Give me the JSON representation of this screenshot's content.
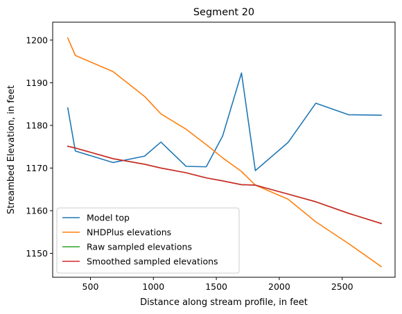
{
  "chart_data": {
    "type": "line",
    "title": "Segment 20",
    "xlabel": "Distance along stream profile, in feet",
    "ylabel": "Streambed Elevation, in feet",
    "xlim": [
      200,
      2920
    ],
    "ylim": [
      1144.4,
      1204.2
    ],
    "xticks": [
      500,
      1000,
      1500,
      2000,
      2500
    ],
    "yticks": [
      1150,
      1160,
      1170,
      1180,
      1190,
      1200
    ],
    "grid": false,
    "legend_position": "lower-left",
    "series": [
      {
        "name": "Model top",
        "color": "#1f77b4",
        "x": [
          320,
          380,
          680,
          930,
          1060,
          1260,
          1420,
          1550,
          1700,
          1810,
          2070,
          2290,
          2550,
          2810
        ],
        "y": [
          1184.1,
          1174.0,
          1171.3,
          1172.8,
          1176.1,
          1170.4,
          1170.3,
          1177.5,
          1192.3,
          1169.4,
          1176.0,
          1185.2,
          1182.5,
          1182.4
        ]
      },
      {
        "name": "NHDPlus elevations",
        "color": "#ff7f0e",
        "x": [
          320,
          380,
          680,
          930,
          1060,
          1260,
          1420,
          1550,
          1700,
          1810,
          2070,
          2290,
          2550,
          2810
        ],
        "y": [
          1200.5,
          1196.4,
          1192.6,
          1186.8,
          1182.7,
          1179.1,
          1175.5,
          1172.4,
          1169.2,
          1166.0,
          1162.7,
          1157.4,
          1152.3,
          1146.9
        ]
      },
      {
        "name": "Raw sampled elevations",
        "color": "#2ca02c",
        "x": [
          320,
          380,
          680,
          930,
          1060,
          1260,
          1420,
          1550,
          1700,
          1810,
          2070,
          2290,
          2550,
          2810
        ],
        "y": [
          1175.1,
          1174.7,
          1172.2,
          1170.9,
          1170.0,
          1168.9,
          1167.7,
          1167.0,
          1166.1,
          1166.0,
          1163.9,
          1162.1,
          1159.4,
          1157.0
        ]
      },
      {
        "name": "Smoothed sampled elevations",
        "color": "#d62728",
        "x": [
          320,
          380,
          680,
          930,
          1060,
          1260,
          1420,
          1550,
          1700,
          1810,
          2070,
          2290,
          2550,
          2810
        ],
        "y": [
          1175.1,
          1174.7,
          1172.2,
          1170.9,
          1170.0,
          1168.9,
          1167.7,
          1167.0,
          1166.1,
          1166.0,
          1163.9,
          1162.1,
          1159.4,
          1157.0
        ]
      }
    ]
  }
}
